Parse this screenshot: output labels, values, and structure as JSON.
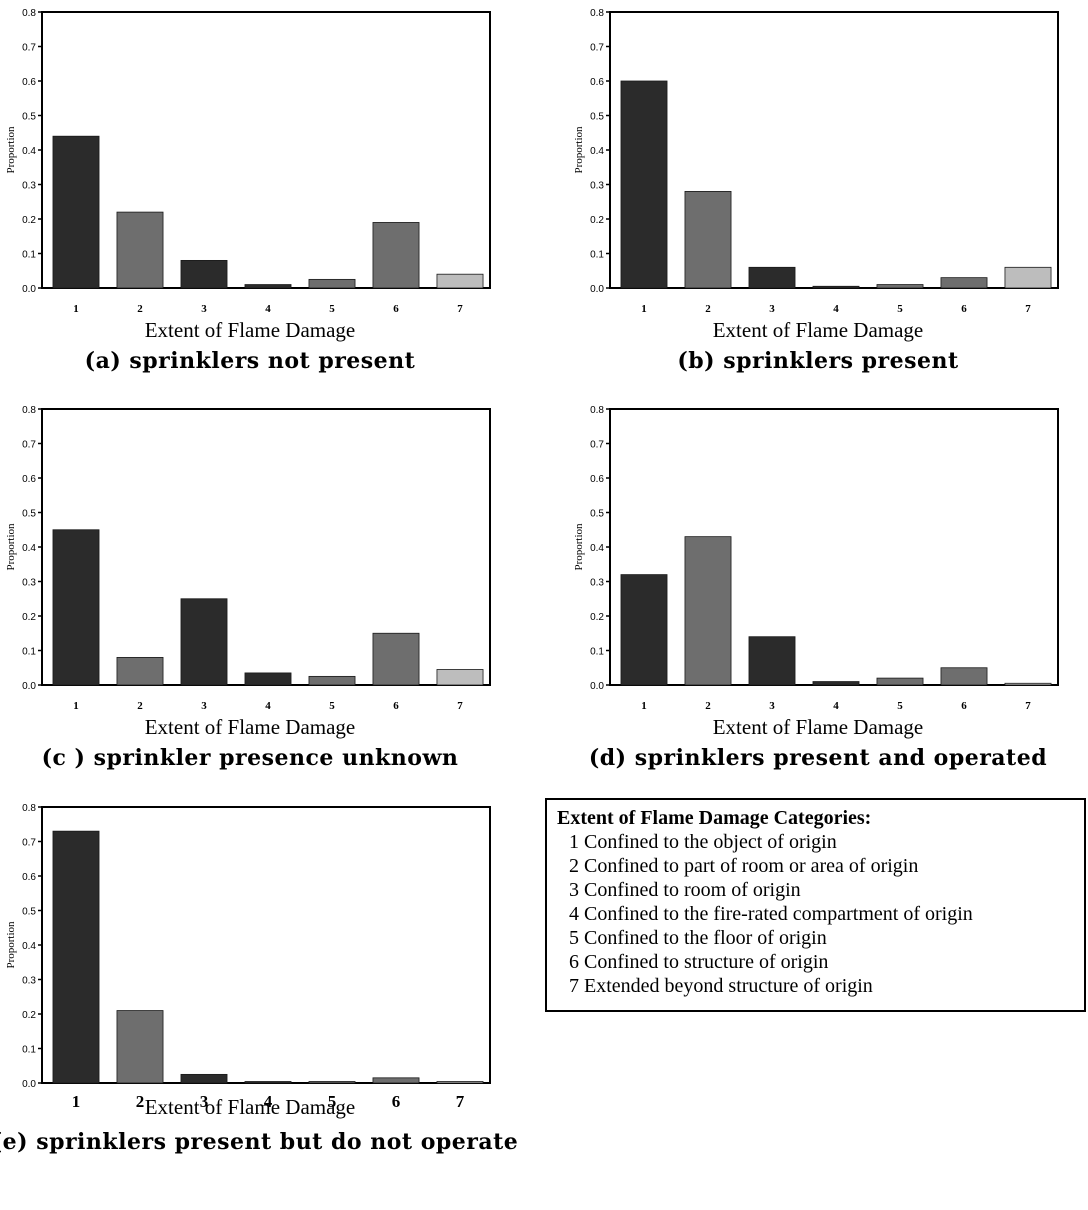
{
  "colors": {
    "bar_dark": "#2b2b2b",
    "bar_mid": "#6e6e6e",
    "bar_light": "#bdbdbd",
    "axis": "#000000"
  },
  "chart_data": [
    {
      "type": "bar",
      "categories": [
        "1",
        "2",
        "3",
        "4",
        "5",
        "6",
        "7"
      ],
      "values": [
        0.44,
        0.22,
        0.08,
        0.01,
        0.025,
        0.19,
        0.04
      ],
      "ylabel": "Proportion",
      "xlabel": "Extent of Flame Damage",
      "title": "(a) sprinklers not present",
      "ylim": [
        0,
        0.8
      ],
      "yticks": [
        "0.0",
        "0.1",
        "0.2",
        "0.3",
        "0.4",
        "0.5",
        "0.6",
        "0.7",
        "0.8"
      ]
    },
    {
      "type": "bar",
      "categories": [
        "1",
        "2",
        "3",
        "4",
        "5",
        "6",
        "7"
      ],
      "values": [
        0.6,
        0.28,
        0.06,
        0.005,
        0.01,
        0.03,
        0.06
      ],
      "ylabel": "Proportion",
      "xlabel": "Extent of Flame Damage",
      "title": "(b) sprinklers present",
      "ylim": [
        0,
        0.8
      ],
      "yticks": [
        "0.0",
        "0.1",
        "0.2",
        "0.3",
        "0.4",
        "0.5",
        "0.6",
        "0.7",
        "0.8"
      ]
    },
    {
      "type": "bar",
      "categories": [
        "1",
        "2",
        "3",
        "4",
        "5",
        "6",
        "7"
      ],
      "values": [
        0.45,
        0.08,
        0.25,
        0.035,
        0.025,
        0.15,
        0.045
      ],
      "ylabel": "Proportion",
      "xlabel": "Extent of Flame Damage",
      "title": "(c ) sprinkler presence unknown",
      "ylim": [
        0,
        0.8
      ],
      "yticks": [
        "0.0",
        "0.1",
        "0.2",
        "0.3",
        "0.4",
        "0.5",
        "0.6",
        "0.7",
        "0.8"
      ]
    },
    {
      "type": "bar",
      "categories": [
        "1",
        "2",
        "3",
        "4",
        "5",
        "6",
        "7"
      ],
      "values": [
        0.32,
        0.43,
        0.14,
        0.01,
        0.02,
        0.05,
        0.005
      ],
      "ylabel": "Proportion",
      "xlabel": "Extent of Flame Damage",
      "title": "(d) sprinklers present and operated",
      "ylim": [
        0,
        0.8
      ],
      "yticks": [
        "0.0",
        "0.1",
        "0.2",
        "0.3",
        "0.4",
        "0.5",
        "0.6",
        "0.7",
        "0.8"
      ]
    },
    {
      "type": "bar",
      "categories": [
        "1",
        "2",
        "3",
        "4",
        "5",
        "6",
        "7"
      ],
      "values": [
        0.73,
        0.21,
        0.025,
        0.002,
        0.002,
        0.015,
        0.002
      ],
      "ylabel": "Proportion",
      "xlabel": "Extent of Flame Damage",
      "title": "(e) sprinklers present but do not operate",
      "ylim": [
        0,
        0.8
      ],
      "yticks": [
        "0.0",
        "0.1",
        "0.2",
        "0.3",
        "0.4",
        "0.5",
        "0.6",
        "0.7",
        "0.8"
      ]
    }
  ],
  "legend": {
    "title": "Extent of Flame Damage Categories:",
    "items": [
      "1 Confined to the object of origin",
      "2 Confined to part of room or area of origin",
      "3 Confined to room of origin",
      "4 Confined to the fire-rated compartment of origin",
      "5 Confined to the floor of origin",
      "6 Confined to structure of origin",
      "7 Extended beyond structure of origin"
    ]
  }
}
